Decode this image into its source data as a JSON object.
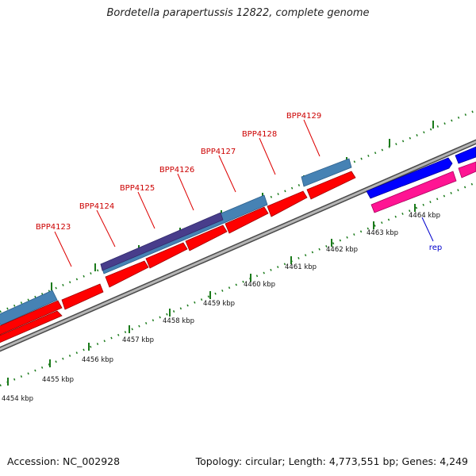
{
  "title": "Bordetella parapertussis 12822, complete genome",
  "accession": "Accession: NC_002928",
  "topology": "Topology: circular; Length: 4,773,551 bp; Genes: 4,249",
  "colors": {
    "forward_cds": "#ff0000",
    "reverse_cds": "#4682b4",
    "reverse_cds_dark": "#483d8b",
    "rep_forward": "#0000ff",
    "rep_reverse": "#ff1493",
    "backbone": "#8c8c8c",
    "tick": "#1a7a1a",
    "gene_label": "#cc0000",
    "rep_label": "#0000cc"
  },
  "gene_labels": [
    "BPP4123",
    "BPP4124",
    "BPP4125",
    "BPP4126",
    "BPP4127",
    "BPP4128",
    "BPP4129"
  ],
  "rep_label": "rep",
  "scale_labels": [
    "4454 kbp",
    "4455 kbp",
    "4456 kbp",
    "4457 kbp",
    "4458 kbp",
    "4459 kbp",
    "4460 kbp",
    "4461 kbp",
    "4462 kbp",
    "4463 kbp",
    "4464 kbp"
  ]
}
